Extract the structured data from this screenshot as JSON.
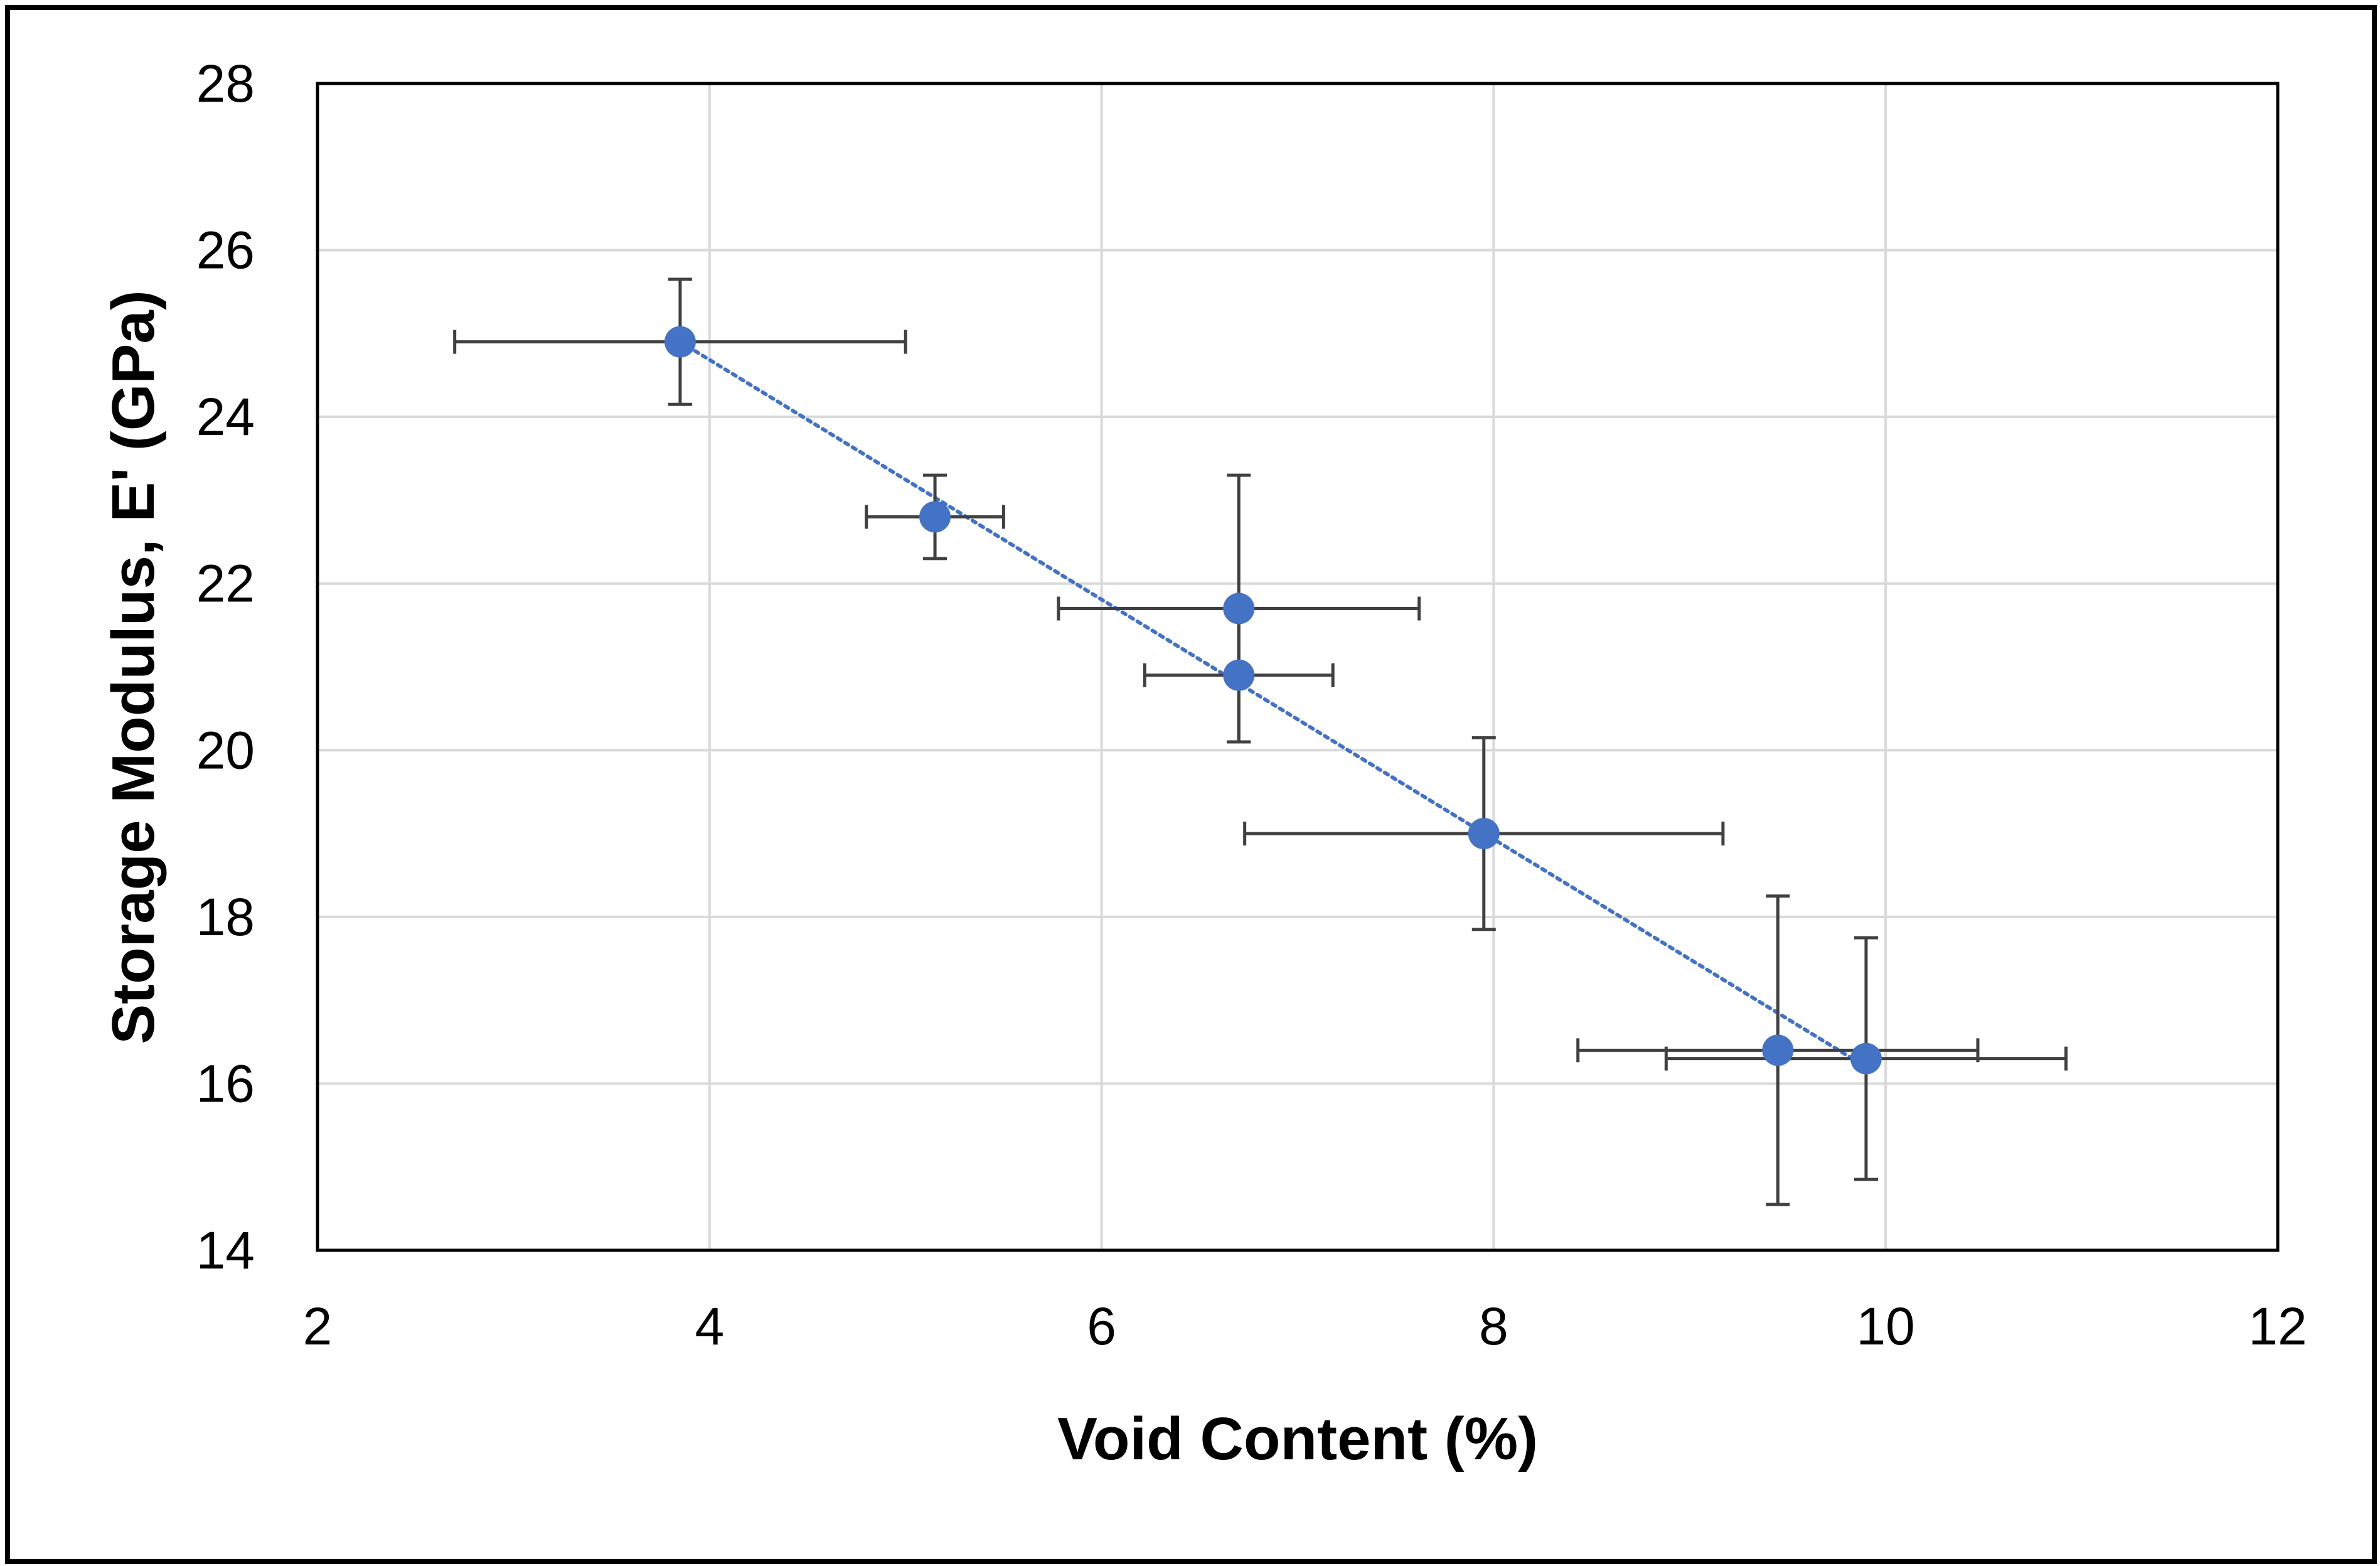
{
  "chart_data": {
    "type": "scatter",
    "title": "",
    "xlabel": "Void Content (%)",
    "ylabel": "Storage Modulus, E' (GPa)",
    "xlim": [
      2,
      12
    ],
    "ylim": [
      14,
      28
    ],
    "xticks": [
      2,
      4,
      6,
      8,
      10,
      12
    ],
    "yticks": [
      14,
      16,
      18,
      20,
      22,
      24,
      26,
      28
    ],
    "grid": true,
    "legend": "none",
    "series": [
      {
        "name": "Storage Modulus",
        "color": "#4472C4",
        "points": [
          {
            "x": 3.85,
            "y": 24.9,
            "xerr": 1.15,
            "yerr": 0.75
          },
          {
            "x": 5.15,
            "y": 22.8,
            "xerr": 0.35,
            "yerr": 0.5
          },
          {
            "x": 6.7,
            "y": 21.7,
            "xerr": 0.92,
            "yerr": 1.6
          },
          {
            "x": 6.7,
            "y": 20.9,
            "xerr": 0.48,
            "yerr": 0.8
          },
          {
            "x": 7.95,
            "y": 19.0,
            "xerr": 1.22,
            "yerr": 1.15
          },
          {
            "x": 9.45,
            "y": 16.4,
            "xerr": 1.02,
            "yerr": 1.85
          },
          {
            "x": 9.9,
            "y": 16.3,
            "xerr": 1.02,
            "yerr": 1.45
          }
        ]
      }
    ],
    "trendline": {
      "type": "linear",
      "style": "dotted",
      "color": "#4472C4",
      "x": [
        3.85,
        9.9
      ],
      "y": [
        24.9,
        16.2
      ]
    },
    "errorbar_color": "#404040",
    "gridline_color": "#D9D9D9"
  }
}
